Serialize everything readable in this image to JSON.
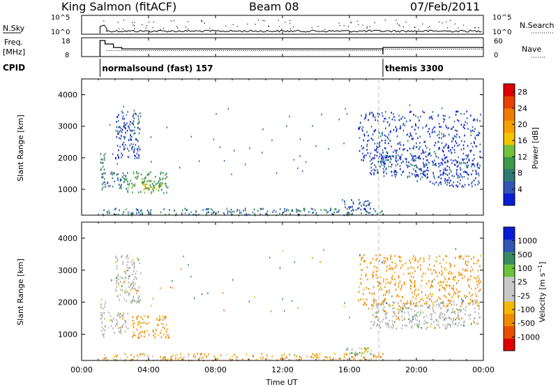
{
  "header": {
    "station": "King Salmon (fitACF)",
    "beam": "Beam 08",
    "date": "07/Feb/2011"
  },
  "top_panels": {
    "nsky_label": "N.Sky",
    "nsky_ticks": [
      "10^5",
      "10^0"
    ],
    "nsearch_label": "N.Search",
    "nsearch_ticks": [
      "10^5",
      "10^0"
    ],
    "freq_label_1": "Freq.",
    "freq_label_2": "[MHz]",
    "freq_ticks": [
      "18",
      "8"
    ],
    "nave_label": "Nave",
    "nave_ticks": [
      "60",
      "0"
    ],
    "cpid_label": "CPID",
    "cpid_modes": [
      {
        "label": "normalsound (fast) 157",
        "start_hour": 1.1
      },
      {
        "label": "themis 3300",
        "start_hour": 18.0
      }
    ]
  },
  "x_axis": {
    "label": "Time UT",
    "ticks": [
      "00:00",
      "04:00",
      "08:00",
      "12:00",
      "16:00",
      "20:00",
      "00:00"
    ],
    "range_hours": [
      0,
      24
    ]
  },
  "colors": {
    "power_scale": [
      "#0a1cd8",
      "#2f56b8",
      "#2e7a72",
      "#3c9a4a",
      "#72c23a",
      "#f5c500",
      "#f6a000",
      "#f07a00",
      "#e84000",
      "#e00000"
    ],
    "velocity_scale": [
      "#0a1cd8",
      "#2f56b8",
      "#3a8a60",
      "#6cc23a",
      "#c8c8c8",
      "#c8c8c8",
      "#f5b800",
      "#f08a00",
      "#e85000",
      "#e00000"
    ],
    "ground_scatter": "#b0b0b0"
  },
  "chart_data": [
    {
      "type": "heatmap",
      "name": "power",
      "ylabel": "Slant Range [km]",
      "yticks": [
        "1000",
        "2000",
        "3000",
        "4000"
      ],
      "ylim": [
        180,
        4500
      ],
      "xlim": [
        0,
        24
      ],
      "colorbar_label": "Power [dB]",
      "colorbar_ticks": [
        "4",
        "8",
        "12",
        "16",
        "20",
        "24",
        "28"
      ],
      "clim": [
        0,
        30
      ],
      "scatter_regions": [
        {
          "t0": 1.1,
          "t1": 1.4,
          "r0": 900,
          "r1": 2200,
          "value": 8
        },
        {
          "t0": 1.5,
          "t1": 2.5,
          "r0": 1050,
          "r1": 1600,
          "value": 6
        },
        {
          "t0": 2.0,
          "t1": 3.5,
          "r0": 2000,
          "r1": 3500,
          "value": 4
        },
        {
          "t0": 2.5,
          "t1": 5.2,
          "r0": 900,
          "r1": 1600,
          "value": 10
        },
        {
          "t0": 3.5,
          "t1": 4.8,
          "r0": 1000,
          "r1": 1300,
          "value": 14
        },
        {
          "t0": 1.2,
          "t1": 18.0,
          "r0": 200,
          "r1": 420,
          "value": 7
        },
        {
          "t0": 15.5,
          "t1": 17.4,
          "r0": 380,
          "r1": 700,
          "value": 5
        },
        {
          "t0": 17.2,
          "t1": 18.5,
          "r0": 1500,
          "r1": 2100,
          "value": 4
        },
        {
          "t0": 17.8,
          "t1": 20.5,
          "r0": 1400,
          "r1": 2100,
          "value": 4
        },
        {
          "t0": 20.0,
          "t1": 23.8,
          "r0": 1100,
          "r1": 1900,
          "value": 4
        },
        {
          "t0": 16.5,
          "t1": 23.8,
          "r0": 1900,
          "r1": 3500,
          "value": 3
        }
      ]
    },
    {
      "type": "heatmap",
      "name": "velocity",
      "ylabel": "Slant Range [km]",
      "yticks": [
        "1000",
        "2000",
        "3000",
        "4000"
      ],
      "ylim": [
        180,
        4500
      ],
      "xlim": [
        0,
        24
      ],
      "colorbar_label": "Velocity [m s^-1]",
      "colorbar_ticks": [
        "1000",
        "500",
        "100",
        "25",
        "-25",
        "-100",
        "-500",
        "-1000"
      ],
      "scatter_regions": [
        {
          "t0": 1.1,
          "t1": 1.4,
          "r0": 900,
          "r1": 2200,
          "value": 0
        },
        {
          "t0": 1.5,
          "t1": 2.8,
          "r0": 1050,
          "r1": 1700,
          "value": 0
        },
        {
          "t0": 2.0,
          "t1": 3.5,
          "r0": 2000,
          "r1": 3500,
          "value": 0
        },
        {
          "t0": 3.0,
          "t1": 5.2,
          "r0": 900,
          "r1": 1600,
          "value": -150
        },
        {
          "t0": 1.2,
          "t1": 18.0,
          "r0": 200,
          "r1": 420,
          "value": -120
        },
        {
          "t0": 15.8,
          "t1": 17.3,
          "r0": 380,
          "r1": 600,
          "value": 80
        },
        {
          "t0": 17.2,
          "t1": 23.8,
          "r0": 1200,
          "r1": 2100,
          "value": 0
        },
        {
          "t0": 16.5,
          "t1": 23.8,
          "r0": 1900,
          "r1": 3500,
          "value": -200
        }
      ]
    }
  ]
}
